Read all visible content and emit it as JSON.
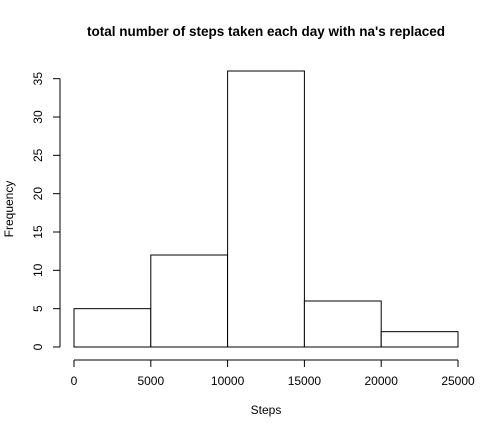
{
  "chart_data": {
    "type": "bar",
    "title": "total number of steps taken each day with na's replaced",
    "xlabel": "Steps",
    "ylabel": "Frequency",
    "bins": [
      {
        "x0": 0,
        "x1": 5000,
        "count": 5
      },
      {
        "x0": 5000,
        "x1": 10000,
        "count": 12
      },
      {
        "x0": 10000,
        "x1": 15000,
        "count": 36
      },
      {
        "x0": 15000,
        "x1": 20000,
        "count": 6
      },
      {
        "x0": 20000,
        "x1": 25000,
        "count": 2
      }
    ],
    "xlim": [
      0,
      25000
    ],
    "ylim": [
      0,
      36
    ],
    "x_ticks": [
      0,
      5000,
      10000,
      15000,
      20000,
      25000
    ],
    "y_ticks": [
      0,
      5,
      10,
      15,
      20,
      25,
      30,
      35
    ],
    "grid": false,
    "bar_fill": "#ffffff",
    "bar_stroke": "#000000"
  }
}
